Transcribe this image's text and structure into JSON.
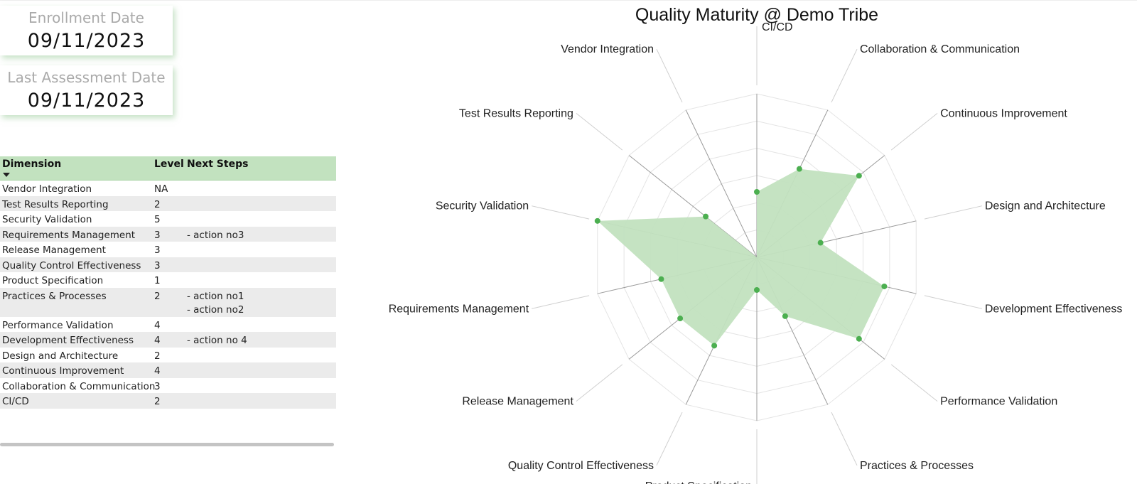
{
  "cards": [
    {
      "label": "Enrollment Date",
      "value": "09/11/2023"
    },
    {
      "label": "Last Assessment Date",
      "value": "09/11/2023"
    }
  ],
  "table": {
    "headers": {
      "dimension": "Dimension",
      "level": "Level",
      "next_steps": "Next Steps"
    },
    "rows": [
      {
        "dimension": "Vendor Integration",
        "level": "NA",
        "next": ""
      },
      {
        "dimension": "Test Results Reporting",
        "level": "2",
        "next": ""
      },
      {
        "dimension": "Security Validation",
        "level": "5",
        "next": ""
      },
      {
        "dimension": "Requirements Management",
        "level": "3",
        "next": "- action no3"
      },
      {
        "dimension": "Release Management",
        "level": "3",
        "next": ""
      },
      {
        "dimension": "Quality Control Effectiveness",
        "level": "3",
        "next": ""
      },
      {
        "dimension": "Product Specification",
        "level": "1",
        "next": ""
      },
      {
        "dimension": "Practices & Processes",
        "level": "2",
        "next": "- action no1",
        "next2": "- action no2"
      },
      {
        "dimension": "Performance Validation",
        "level": "4",
        "next": ""
      },
      {
        "dimension": "Development Effectiveness",
        "level": "4",
        "next": "- action no 4"
      },
      {
        "dimension": "Design and Architecture",
        "level": "2",
        "next": ""
      },
      {
        "dimension": "Continuous Improvement",
        "level": "4",
        "next": ""
      },
      {
        "dimension": "Collaboration & Communication",
        "level": "3",
        "next": ""
      },
      {
        "dimension": "CI/CD",
        "level": "2",
        "next": ""
      }
    ]
  },
  "chart_data": {
    "type": "radar",
    "title": "Quality Maturity @ Demo Tribe",
    "categories": [
      "CI/CD",
      "Collaboration & Communication",
      "Continuous Improvement",
      "Design and Architecture",
      "Development Effectiveness",
      "Performance Validation",
      "Practices & Processes",
      "Product Specification",
      "Quality Control Effectiveness",
      "Release Management",
      "Requirements Management",
      "Security Validation",
      "Test Results Reporting",
      "Vendor Integration"
    ],
    "values": [
      2,
      3,
      4,
      2,
      4,
      4,
      2,
      1,
      3,
      3,
      3,
      5,
      2,
      0
    ],
    "rmax": 5,
    "fill_color": "#c2e2bf",
    "point_color": "#4caf50",
    "grid": true
  }
}
